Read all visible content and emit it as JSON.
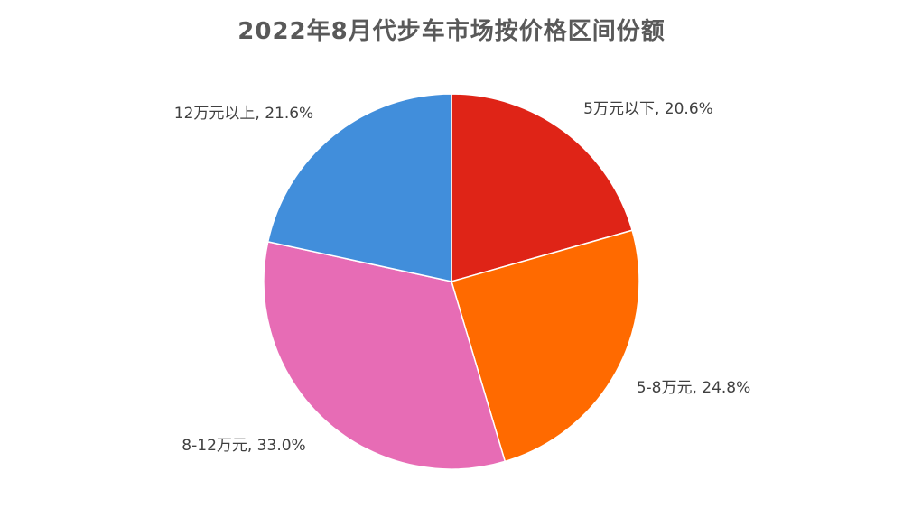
{
  "chart_data": {
    "type": "pie",
    "title": "2022年8月代步车市场按价格区间份额",
    "categories": [
      "5万元以下",
      "5-8万元",
      "8-12万元",
      "12万元以上"
    ],
    "values": [
      20.6,
      24.8,
      33.0,
      21.6
    ],
    "labels": [
      "5万元以下, 20.6%",
      "5-8万元, 24.8%",
      "8-12万元, 33.0%",
      "12万元以上, 21.6%"
    ],
    "colors": [
      "#DF2417",
      "#FF6A00",
      "#E76CB5",
      "#418EDB"
    ],
    "unit": "%",
    "legend": "none"
  }
}
